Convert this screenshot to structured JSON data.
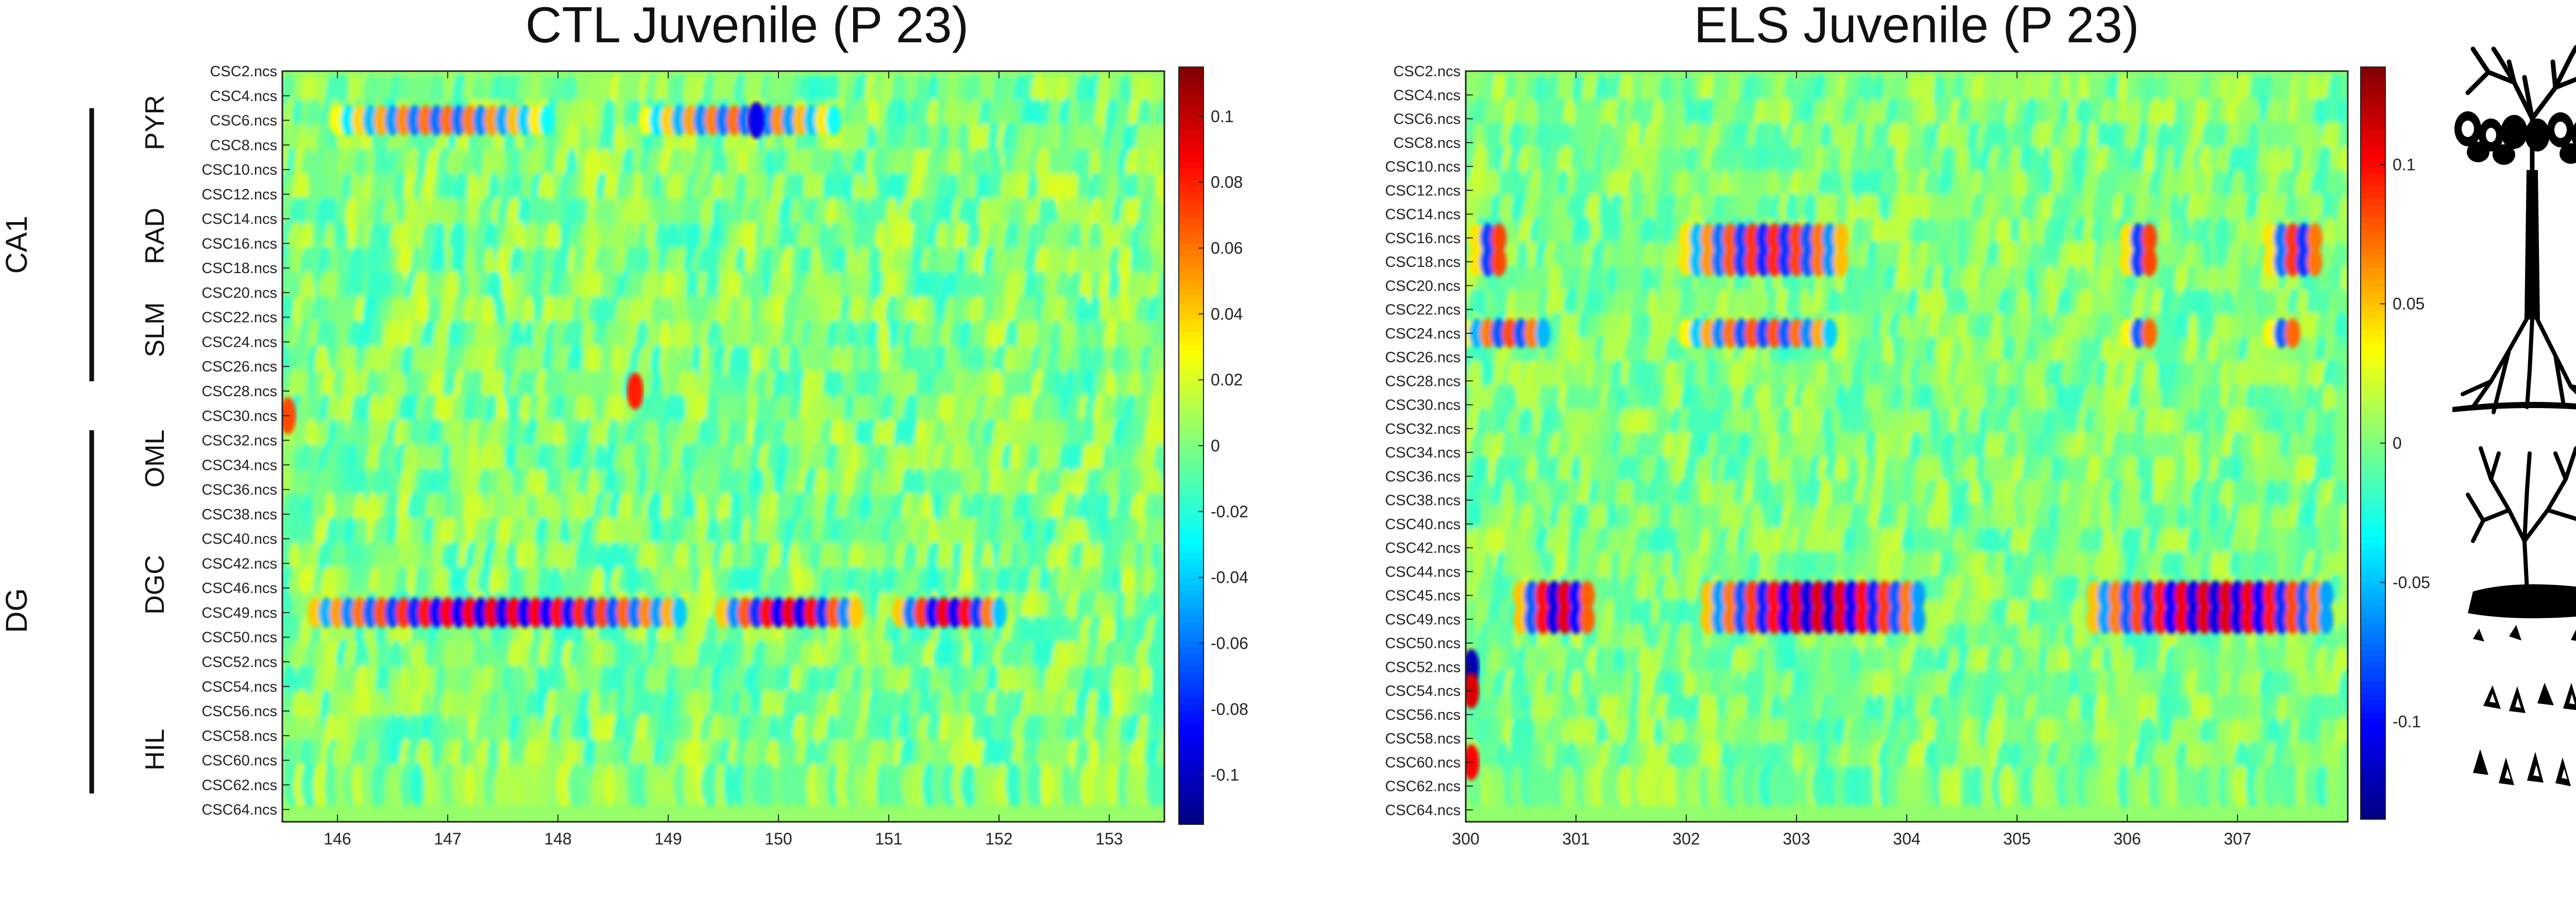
{
  "colors": {
    "colormap": "jet",
    "background": "#80ff80",
    "axis": "#222222"
  },
  "regions": [
    {
      "label": "CA1"
    },
    {
      "label": "DG"
    }
  ],
  "layers": [
    "PYR",
    "RAD",
    "SLM",
    "OML",
    "DGC",
    "HIL"
  ],
  "icons": [
    "ca1-pyramidal-neuron-icon",
    "dg-granule-neuron-icon"
  ],
  "chart_data": [
    {
      "type": "heatmap",
      "title": "CTL Juvenile (P 23)",
      "xlabel": "",
      "ylabel": "",
      "xlim": [
        145.5,
        153.5
      ],
      "x_ticks": [
        "146",
        "147",
        "148",
        "149",
        "150",
        "151",
        "152",
        "153"
      ],
      "x_tick_values": [
        146,
        147,
        148,
        149,
        150,
        151,
        152,
        153
      ],
      "channels": [
        "CSC2.ncs",
        "CSC4.ncs",
        "CSC6.ncs",
        "CSC8.ncs",
        "CSC10.ncs",
        "CSC12.ncs",
        "CSC14.ncs",
        "CSC16.ncs",
        "CSC18.ncs",
        "CSC20.ncs",
        "CSC22.ncs",
        "CSC24.ncs",
        "CSC26.ncs",
        "CSC28.ncs",
        "CSC30.ncs",
        "CSC32.ncs",
        "CSC34.ncs",
        "CSC36.ncs",
        "CSC38.ncs",
        "CSC40.ncs",
        "CSC42.ncs",
        "CSC46.ncs",
        "CSC49.ncs",
        "CSC50.ncs",
        "CSC52.ncs",
        "CSC54.ncs",
        "CSC56.ncs",
        "CSC58.ncs",
        "CSC60.ncs",
        "CSC62.ncs",
        "CSC64.ncs"
      ],
      "clim": [
        -0.115,
        0.115
      ],
      "colorbar_ticks": [
        "-0.1",
        "-0.08",
        "-0.06",
        "-0.04",
        "-0.02",
        "0",
        "0.02",
        "0.04",
        "0.06",
        "0.08",
        "0.1"
      ],
      "colorbar_tick_values": [
        -0.1,
        -0.08,
        -0.06,
        -0.04,
        -0.02,
        0,
        0.02,
        0.04,
        0.06,
        0.08,
        0.1
      ],
      "grid": false,
      "strong_rows": [
        {
          "channel": "CSC49.ncs",
          "amplitude": 0.09,
          "segments": [
            [
              145.8,
              149.1
            ],
            [
              149.5,
              150.7
            ],
            [
              151.1,
              152.0
            ]
          ]
        },
        {
          "channel": "CSC6.ncs",
          "amplitude": 0.06,
          "segments": [
            [
              146.0,
              147.9
            ],
            [
              148.8,
              150.5
            ]
          ]
        }
      ],
      "hotspots": [
        {
          "x": 149.8,
          "channel": "CSC6.ncs",
          "value": -0.09
        },
        {
          "x": 148.7,
          "channel": "CSC28.ncs",
          "value": 0.08
        },
        {
          "x": 145.55,
          "channel": "CSC30.ncs",
          "value": 0.07
        }
      ]
    },
    {
      "type": "heatmap",
      "title": "ELS Juvenile (P 23)",
      "xlabel": "",
      "ylabel": "",
      "xlim": [
        300,
        308.0
      ],
      "x_ticks": [
        "300",
        "301",
        "302",
        "303",
        "304",
        "305",
        "306",
        "307"
      ],
      "x_tick_values": [
        300,
        301,
        302,
        303,
        304,
        305,
        306,
        307
      ],
      "channels": [
        "CSC2.ncs",
        "CSC4.ncs",
        "CSC6.ncs",
        "CSC8.ncs",
        "CSC10.ncs",
        "CSC12.ncs",
        "CSC14.ncs",
        "CSC16.ncs",
        "CSC18.ncs",
        "CSC20.ncs",
        "CSC22.ncs",
        "CSC24.ncs",
        "CSC26.ncs",
        "CSC28.ncs",
        "CSC30.ncs",
        "CSC32.ncs",
        "CSC34.ncs",
        "CSC36.ncs",
        "CSC38.ncs",
        "CSC40.ncs",
        "CSC42.ncs",
        "CSC44.ncs",
        "CSC45.ncs",
        "CSC49.ncs",
        "CSC50.ncs",
        "CSC52.ncs",
        "CSC54.ncs",
        "CSC56.ncs",
        "CSC58.ncs",
        "CSC60.ncs",
        "CSC62.ncs",
        "CSC64.ncs"
      ],
      "clim": [
        -0.135,
        0.135
      ],
      "colorbar_ticks": [
        "-0.1",
        "-0.05",
        "0",
        "0.05",
        "0.1"
      ],
      "colorbar_tick_values": [
        -0.1,
        -0.05,
        0,
        0.05,
        0.1
      ],
      "grid": false,
      "strong_rows": [
        {
          "channel": "CSC45.ncs",
          "amplitude": 0.11,
          "segments": [
            [
              300.5,
              301.2
            ],
            [
              302.2,
              304.2
            ],
            [
              305.7,
              307.9
            ]
          ]
        },
        {
          "channel": "CSC49.ncs",
          "amplitude": 0.11,
          "segments": [
            [
              300.5,
              301.2
            ],
            [
              302.2,
              304.2
            ],
            [
              305.7,
              307.9
            ]
          ]
        },
        {
          "channel": "CSC16.ncs",
          "amplitude": 0.09,
          "segments": [
            [
              300.1,
              300.4
            ],
            [
              302.0,
              303.5
            ],
            [
              306.0,
              306.3
            ],
            [
              307.3,
              307.8
            ]
          ]
        },
        {
          "channel": "CSC18.ncs",
          "amplitude": 0.09,
          "segments": [
            [
              300.1,
              300.4
            ],
            [
              302.0,
              303.5
            ],
            [
              306.0,
              306.3
            ],
            [
              307.3,
              307.8
            ]
          ]
        },
        {
          "channel": "CSC24.ncs",
          "amplitude": 0.08,
          "segments": [
            [
              300.0,
              300.8
            ],
            [
              302.0,
              303.4
            ],
            [
              306.0,
              306.3
            ],
            [
              307.3,
              307.6
            ]
          ]
        }
      ],
      "hotspots": [
        {
          "x": 300.05,
          "channel": "CSC52.ncs",
          "value": -0.12
        },
        {
          "x": 300.05,
          "channel": "CSC54.ncs",
          "value": 0.11
        },
        {
          "x": 300.05,
          "channel": "CSC60.ncs",
          "value": 0.1
        }
      ]
    }
  ]
}
